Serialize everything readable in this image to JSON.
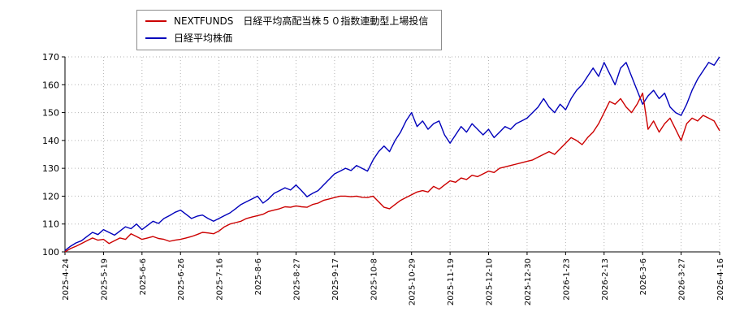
{
  "chart_data": {
    "type": "line",
    "title": "",
    "xlabel": "",
    "ylabel": "",
    "ylim": [
      100,
      170
    ],
    "y_ticks": [
      100,
      110,
      120,
      130,
      140,
      150,
      160,
      170
    ],
    "grid": "dotted",
    "legend_position": "top-outside-box",
    "x_tick_labels": [
      "2025-4-24",
      "2025-5-19",
      "2025-6-6",
      "2025-6-26",
      "2025-7-16",
      "2025-8-6",
      "2025-8-27",
      "2025-9-17",
      "2025-10-8",
      "2025-10-29",
      "2025-11-19",
      "2025-12-10",
      "2025-12-30",
      "2026-1-23",
      "2026-2-13",
      "2026-3-6",
      "2026-3-27",
      "2026-4-16"
    ],
    "series": [
      {
        "name": "NEXTFUNDS　日経平均高配当株５０指数連動型上場投信",
        "color": "#cc0000",
        "values": [
          100,
          101.2,
          102,
          103,
          104,
          105,
          104.2,
          104.5,
          103,
          104,
          105,
          104.5,
          106.5,
          105.5,
          104.5,
          105,
          105.5,
          104.8,
          104.5,
          103.8,
          104.2,
          104.5,
          105,
          105.5,
          106.2,
          107,
          106.8,
          106.5,
          107.5,
          109,
          110,
          110.5,
          111,
          112,
          112.5,
          113,
          113.5,
          114.5,
          115,
          115.5,
          116.2,
          116,
          116.5,
          116.2,
          116,
          117,
          117.5,
          118.5,
          119,
          119.5,
          120,
          120,
          119.8,
          120,
          119.6,
          119.5,
          120,
          118,
          116,
          115.5,
          117,
          118.5,
          119.5,
          120.5,
          121.5,
          122,
          121.5,
          123.5,
          122.5,
          124,
          125.5,
          125,
          126.5,
          126,
          127.5,
          127,
          128,
          129,
          128.5,
          130,
          130.5,
          131,
          131.5,
          132,
          132.5,
          133,
          134,
          135,
          136,
          135,
          137,
          139,
          141,
          140,
          138.5,
          141,
          143,
          146,
          150,
          154,
          153,
          155,
          152,
          150,
          153,
          157,
          144,
          147,
          143,
          146,
          148,
          144,
          140,
          146,
          148,
          147,
          149,
          148,
          147,
          143.5
        ]
      },
      {
        "name": "日経平均株価",
        "color": "#0000bb",
        "values": [
          100.5,
          102,
          103.2,
          104,
          105.5,
          107,
          106.2,
          108,
          107,
          106,
          107.5,
          109,
          108.3,
          110,
          108,
          109.5,
          111,
          110.2,
          112,
          113,
          114.2,
          115,
          113.5,
          112,
          112.8,
          113.2,
          112,
          111,
          112,
          113,
          114,
          115.5,
          117,
          118,
          119,
          120,
          117.5,
          119,
          121,
          122,
          123,
          122.2,
          124,
          122,
          119.8,
          121,
          122,
          124,
          126,
          128,
          129,
          130,
          129.2,
          131,
          130,
          129,
          133,
          136,
          138,
          136,
          140,
          143,
          147,
          150,
          145,
          147,
          144,
          146,
          147,
          142,
          139,
          142,
          145,
          143,
          146,
          144,
          142,
          144,
          141,
          143,
          145,
          144,
          146,
          147,
          148,
          150,
          152,
          155,
          152,
          150,
          153,
          151,
          155,
          158,
          160,
          163,
          166,
          163,
          168,
          164,
          160,
          166,
          168,
          163,
          158,
          153,
          156,
          158,
          155,
          157,
          152,
          150,
          149,
          153,
          158,
          162,
          165,
          168,
          167,
          170
        ]
      }
    ]
  }
}
